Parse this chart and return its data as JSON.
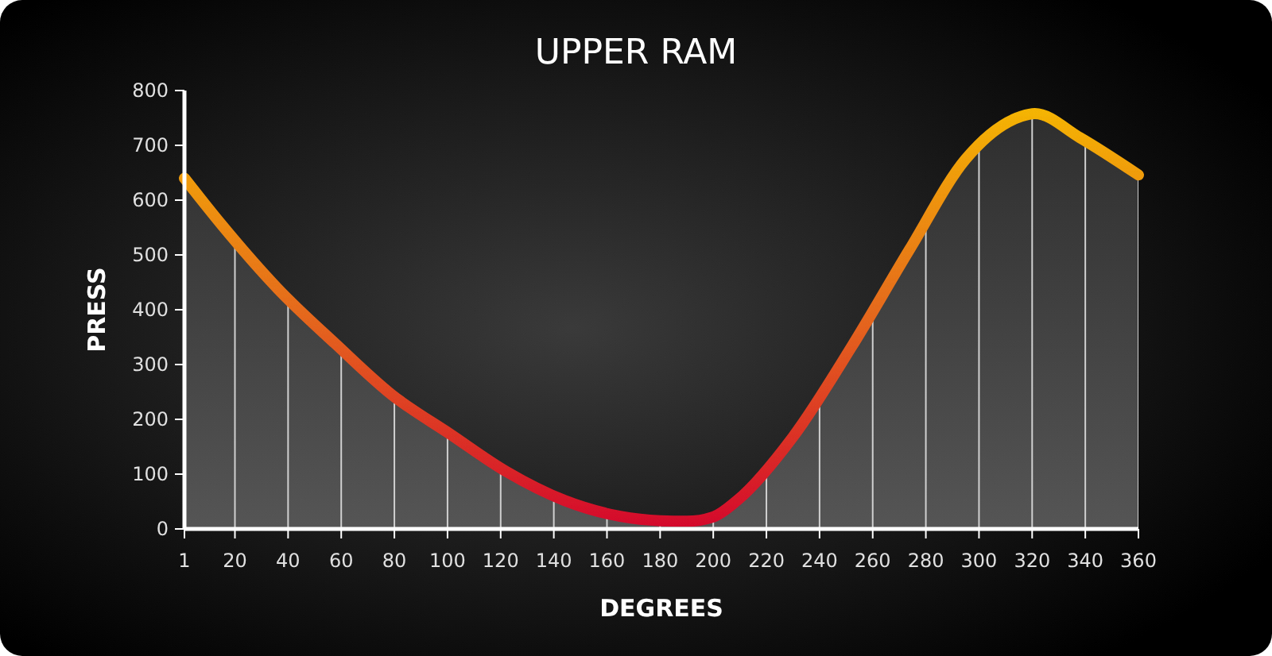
{
  "chart_data": {
    "type": "area",
    "title": "UPPER RAM",
    "xlabel": "DEGREES",
    "ylabel": "PRESS",
    "xlim": [
      1,
      360
    ],
    "xticks": [
      1,
      20,
      40,
      60,
      80,
      100,
      120,
      140,
      160,
      180,
      200,
      220,
      240,
      260,
      280,
      300,
      320,
      340,
      360
    ],
    "ylim": [
      0,
      800
    ],
    "yticks": [
      0,
      100,
      200,
      300,
      400,
      500,
      600,
      700,
      800
    ],
    "grid": "x",
    "series": [
      {
        "color": "#e56a1c",
        "x": [
          1,
          15,
          36,
          58,
          79,
          101,
          122,
          144,
          165,
          180,
          190,
          200,
          209,
          230,
          252,
          274,
          295,
          316,
          321,
          338,
          360
        ],
        "values": [
          640,
          555,
          439,
          337,
          245,
          173,
          105,
          52,
          23,
          15,
          14,
          22,
          52,
          168,
          332,
          511,
          675,
          753,
          758,
          714,
          646
        ]
      }
    ]
  }
}
